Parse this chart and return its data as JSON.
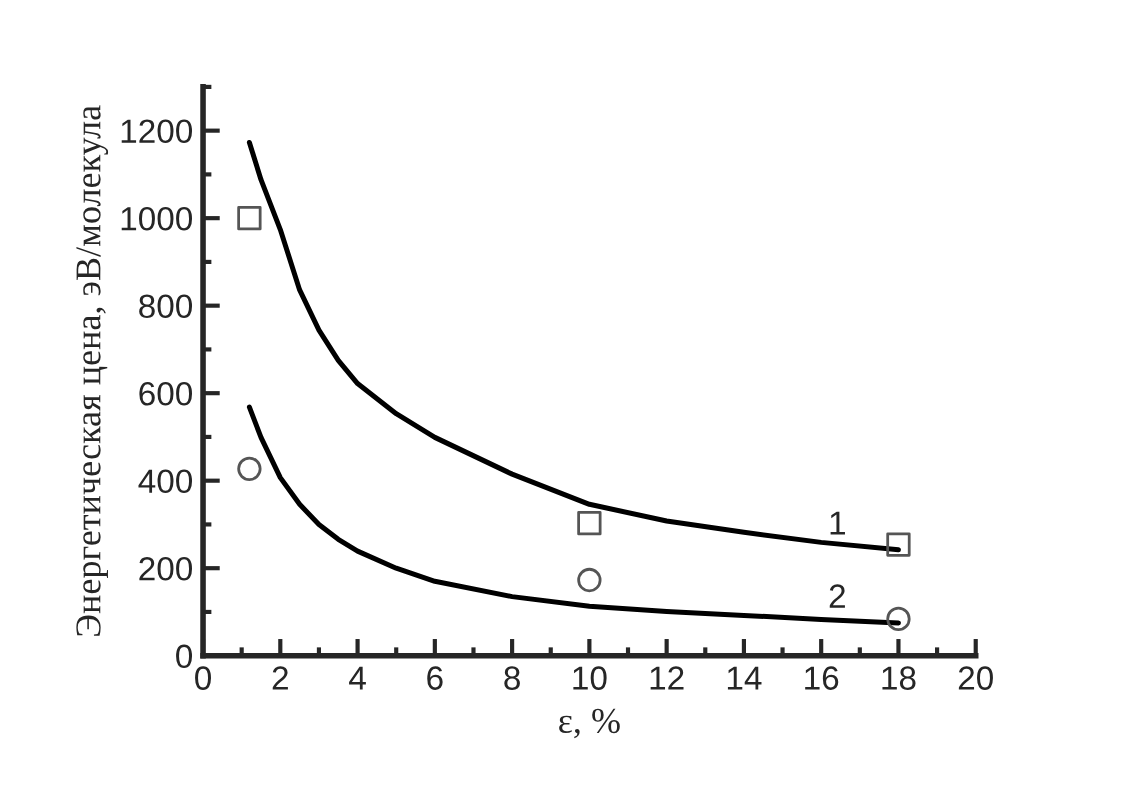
{
  "chart_data": {
    "type": "line",
    "xlabel": "ε, %",
    "ylabel": "Энергетическая цена, эВ/молекула",
    "xlim": [
      0,
      20
    ],
    "xticks": [
      0,
      2,
      4,
      6,
      8,
      10,
      12,
      14,
      16,
      18,
      20
    ],
    "ylim": [
      0,
      1300
    ],
    "yticks": [
      0,
      200,
      400,
      600,
      800,
      1000,
      1200
    ],
    "grid": false,
    "legend": false,
    "series": [
      {
        "color": "#000000",
        "marker": "none",
        "line_style": "solid",
        "x": [
          1.2,
          1.5,
          2,
          2.5,
          3,
          3.5,
          4,
          5,
          6,
          8,
          10,
          12,
          14,
          16,
          18
        ],
        "values": [
          1173,
          1088,
          974,
          836,
          744,
          675,
          622,
          553,
          499,
          415,
          346,
          308,
          282,
          259,
          242
        ]
      },
      {
        "color": "#000000",
        "marker": "none",
        "line_style": "solid",
        "x": [
          1.2,
          1.5,
          2,
          2.5,
          3,
          3.5,
          4,
          5,
          6,
          8,
          10,
          12,
          14,
          16,
          18
        ],
        "values": [
          568,
          499,
          407,
          346,
          300,
          266,
          239,
          200,
          170,
          135,
          113,
          101,
          92,
          83,
          75
        ]
      },
      {
        "type": "scatter",
        "color": "#555555",
        "marker": "square",
        "x": [
          1.2,
          10,
          18
        ],
        "values": [
          1000,
          303,
          254
        ]
      },
      {
        "type": "scatter",
        "color": "#555555",
        "marker": "circle",
        "x": [
          1.2,
          10,
          18
        ],
        "values": [
          427,
          173,
          84
        ]
      }
    ],
    "annotations": [
      "1",
      "2"
    ]
  }
}
